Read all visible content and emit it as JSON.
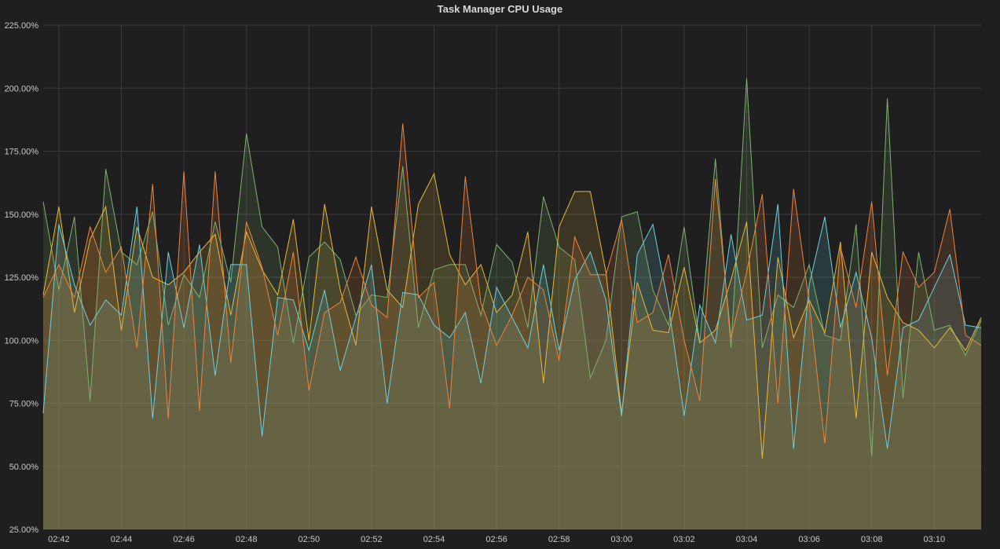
{
  "panel": {
    "title": "Task Manager CPU Usage"
  },
  "colors": {
    "background": "#1f1f20",
    "grid": "#3a3a3c",
    "text": "#c8c9ca"
  },
  "chart_data": {
    "type": "area",
    "title": "Task Manager CPU Usage",
    "xlabel": "",
    "ylabel": "",
    "x_unit": "time (HH:MM)",
    "x_start": "02:41:30",
    "x_end": "03:11:30",
    "x_ticks": [
      "02:42",
      "02:44",
      "02:46",
      "02:48",
      "02:50",
      "02:52",
      "02:54",
      "02:56",
      "02:58",
      "03:00",
      "03:02",
      "03:04",
      "03:06",
      "03:08",
      "03:10"
    ],
    "ylim": [
      25,
      225
    ],
    "y_ticks": [
      "25.00%",
      "50.00%",
      "75.00%",
      "100.00%",
      "125.00%",
      "150.00%",
      "175.00%",
      "200.00%",
      "225.00%"
    ],
    "y_tick_values": [
      25,
      50,
      75,
      100,
      125,
      150,
      175,
      200,
      225
    ],
    "grid": true,
    "legend": "none",
    "fill": true,
    "x": [
      "02:41:30",
      "02:42:00",
      "02:42:30",
      "02:43:00",
      "02:43:30",
      "02:44:00",
      "02:44:30",
      "02:45:00",
      "02:45:30",
      "02:46:00",
      "02:46:30",
      "02:47:00",
      "02:47:30",
      "02:48:00",
      "02:48:30",
      "02:49:00",
      "02:49:30",
      "02:50:00",
      "02:50:30",
      "02:51:00",
      "02:51:30",
      "02:52:00",
      "02:52:30",
      "02:53:00",
      "02:53:30",
      "02:54:00",
      "02:54:30",
      "02:55:00",
      "02:55:30",
      "02:56:00",
      "02:56:30",
      "02:57:00",
      "02:57:30",
      "02:58:00",
      "02:58:30",
      "02:59:00",
      "02:59:30",
      "03:00:00",
      "03:00:30",
      "03:01:00",
      "03:01:30",
      "03:02:00",
      "03:02:30",
      "03:03:00",
      "03:03:30",
      "03:04:00",
      "03:04:30",
      "03:05:00",
      "03:05:30",
      "03:06:00",
      "03:06:30",
      "03:07:00",
      "03:07:30",
      "03:08:00",
      "03:08:30",
      "03:09:00",
      "03:09:30",
      "03:10:00",
      "03:10:30",
      "03:11:00",
      "03:11:30"
    ],
    "series": [
      {
        "color": "#7eb26d",
        "values": [
          155,
          120,
          149,
          76,
          168,
          135,
          130,
          151,
          106,
          126,
          117,
          147,
          123,
          182,
          145,
          137,
          99,
          133,
          139,
          132,
          110,
          118,
          117,
          169,
          105,
          128,
          130,
          130,
          110,
          138,
          131,
          105,
          157,
          137,
          132,
          85,
          100,
          149,
          151,
          120,
          106,
          145,
          99,
          172,
          97,
          204,
          97,
          118,
          113,
          130,
          102,
          100,
          146,
          54,
          196,
          77,
          135,
          104,
          106,
          94,
          108
        ]
      },
      {
        "color": "#eab839",
        "values": [
          118,
          153,
          111,
          140,
          153,
          104,
          145,
          125,
          122,
          127,
          135,
          142,
          110,
          143,
          128,
          118,
          148,
          100,
          154,
          120,
          98,
          153,
          120,
          113,
          154,
          166,
          134,
          122,
          130,
          111,
          118,
          143,
          83,
          145,
          159,
          159,
          127,
          71,
          123,
          104,
          103,
          129,
          99,
          104,
          124,
          147,
          53,
          133,
          101,
          116,
          103,
          139,
          69,
          135,
          117,
          107,
          104,
          97,
          105,
          96,
          109
        ]
      },
      {
        "color": "#6ed0e0",
        "values": [
          71,
          146,
          122,
          106,
          116,
          110,
          153,
          69,
          135,
          105,
          138,
          86,
          130,
          130,
          62,
          117,
          116,
          96,
          120,
          88,
          109,
          130,
          75,
          119,
          118,
          106,
          101,
          111,
          83,
          121,
          109,
          97,
          130,
          96,
          124,
          135,
          116,
          70,
          134,
          146,
          114,
          70,
          114,
          99,
          142,
          108,
          110,
          154,
          57,
          122,
          149,
          105,
          127,
          101,
          57,
          105,
          108,
          121,
          134,
          106,
          105
        ]
      },
      {
        "color": "#ef843c",
        "values": [
          117,
          130,
          117,
          145,
          127,
          137,
          97,
          162,
          69,
          167,
          72,
          167,
          91,
          147,
          129,
          102,
          135,
          80,
          111,
          115,
          133,
          114,
          109,
          186,
          117,
          123,
          73,
          165,
          115,
          98,
          110,
          125,
          120,
          92,
          141,
          126,
          126,
          148,
          107,
          111,
          134,
          100,
          76,
          164,
          101,
          127,
          158,
          75,
          160,
          115,
          59,
          137,
          113,
          155,
          86,
          135,
          121,
          127,
          152,
          102,
          98
        ]
      }
    ]
  }
}
